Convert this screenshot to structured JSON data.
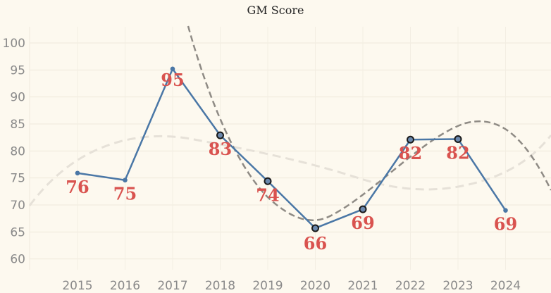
{
  "chart_data": {
    "type": "line",
    "title": "GM Score",
    "xlabel": "",
    "ylabel": "",
    "categories": [
      "2015",
      "2016",
      "2017",
      "2018",
      "2019",
      "2020",
      "2021",
      "2022",
      "2023",
      "2024"
    ],
    "series": [
      {
        "values": [
          76,
          75,
          95,
          83,
          74,
          66,
          69,
          82,
          82,
          69
        ],
        "exact_values": [
          75.9,
          74.6,
          95.2,
          82.9,
          74.4,
          65.7,
          69.2,
          82.1,
          82.2,
          69.0
        ],
        "highlighted": [
          false,
          false,
          false,
          true,
          true,
          true,
          true,
          true,
          true,
          false
        ],
        "color": "#4a77a6"
      }
    ],
    "yticks": [
      60,
      65,
      70,
      75,
      80,
      85,
      90,
      95,
      100
    ],
    "ylim": [
      58,
      103
    ],
    "grid": true,
    "colors": {
      "line": "#4a77a6",
      "label": "#d9534f",
      "trend_dark": "#8f8b85",
      "trend_light": "#e6e1d8",
      "background": "#fdf9ef"
    }
  }
}
